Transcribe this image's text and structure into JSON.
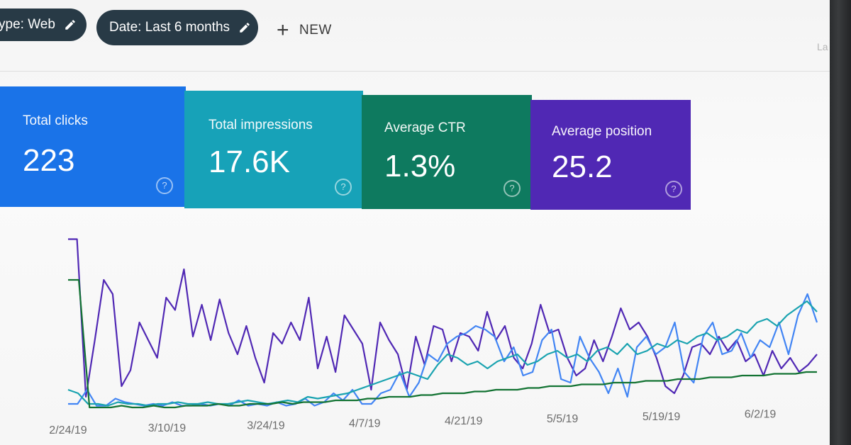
{
  "toolbar": {
    "type_chip": "ype: Web",
    "date_chip": "Date: Last 6 months",
    "new_label": "NEW",
    "cut_text": "La"
  },
  "metrics": [
    {
      "label": "Total clicks",
      "value": "223",
      "color": "#1a73e8"
    },
    {
      "label": "Total impressions",
      "value": "17.6K",
      "color": "#17a2b8"
    },
    {
      "label": "Average CTR",
      "value": "1.3%",
      "color": "#0e7a5f"
    },
    {
      "label": "Average position",
      "value": "25.2",
      "color": "#5028b4"
    }
  ],
  "icons": {
    "edit": "pencil-icon",
    "add": "plus-icon",
    "help": "question-circle-icon"
  },
  "chart_data": {
    "type": "line",
    "x_ticks": [
      "2/24/19",
      "3/10/19",
      "3/24/19",
      "4/7/19",
      "4/21/19",
      "5/5/19",
      "5/19/19",
      "6/2/19"
    ],
    "grid": false,
    "series": [
      {
        "color": "#5028b4",
        "values": [
          95,
          95,
          6,
          38,
          72,
          64,
          12,
          21,
          48,
          38,
          28,
          62,
          55,
          78,
          40,
          58,
          38,
          61,
          42,
          30,
          46,
          28,
          14,
          42,
          36,
          48,
          38,
          62,
          22,
          40,
          20,
          52,
          44,
          36,
          10,
          48,
          38,
          30,
          10,
          40,
          24,
          46,
          44,
          26,
          42,
          40,
          32,
          54,
          38,
          46,
          28,
          22,
          36,
          58,
          42,
          44,
          28,
          18,
          22,
          38,
          26,
          40,
          56,
          44,
          48,
          40,
          28,
          12,
          8,
          18,
          34,
          36,
          30,
          40,
          32,
          38,
          26,
          30,
          18,
          32,
          22,
          28,
          20,
          24,
          30
        ]
      },
      {
        "color": "#4285f4",
        "values": [
          2,
          2,
          10,
          1,
          1,
          5,
          3,
          2,
          1,
          2,
          1,
          3,
          1,
          1,
          2,
          1,
          2,
          1,
          4,
          1,
          2,
          1,
          3,
          1,
          2,
          5,
          1,
          3,
          8,
          4,
          10,
          2,
          2,
          8,
          10,
          20,
          6,
          14,
          30,
          26,
          36,
          40,
          42,
          46,
          44,
          40,
          26,
          34,
          18,
          20,
          38,
          44,
          16,
          14,
          40,
          28,
          20,
          8,
          22,
          6,
          34,
          40,
          30,
          34,
          48,
          20,
          14,
          40,
          48,
          30,
          32,
          42,
          28,
          38,
          34,
          48,
          30,
          52,
          64,
          48
        ]
      },
      {
        "color": "#1aa3b0",
        "values": [
          10,
          8,
          2,
          2,
          1,
          3,
          2,
          2,
          1,
          2,
          2,
          3,
          2,
          2,
          3,
          2,
          2,
          3,
          4,
          3,
          2,
          3,
          4,
          3,
          6,
          5,
          6,
          7,
          8,
          10,
          12,
          14,
          16,
          18,
          20,
          18,
          16,
          24,
          30,
          28,
          24,
          26,
          22,
          26,
          28,
          30,
          24,
          26,
          30,
          32,
          28,
          30,
          26,
          32,
          34,
          30,
          36,
          30,
          32,
          36,
          34,
          38,
          36,
          40,
          42,
          38,
          40,
          44,
          42,
          48,
          50,
          46,
          52,
          56,
          60,
          54
        ]
      },
      {
        "color": "#137333",
        "values": [
          72,
          72,
          0,
          0,
          0,
          1,
          0,
          0,
          1,
          0,
          0,
          1,
          1,
          1,
          2,
          1,
          1,
          2,
          2,
          2,
          3,
          2,
          3,
          3,
          3,
          4,
          4,
          4,
          5,
          5,
          6,
          6,
          6,
          7,
          7,
          8,
          8,
          8,
          9,
          9,
          10,
          10,
          10,
          11,
          11,
          12,
          12,
          12,
          13,
          13,
          13,
          14,
          14,
          14,
          15,
          15,
          15,
          16,
          16,
          16,
          17,
          17,
          17,
          18,
          18,
          18,
          19,
          19,
          19,
          20,
          20
        ]
      }
    ]
  }
}
